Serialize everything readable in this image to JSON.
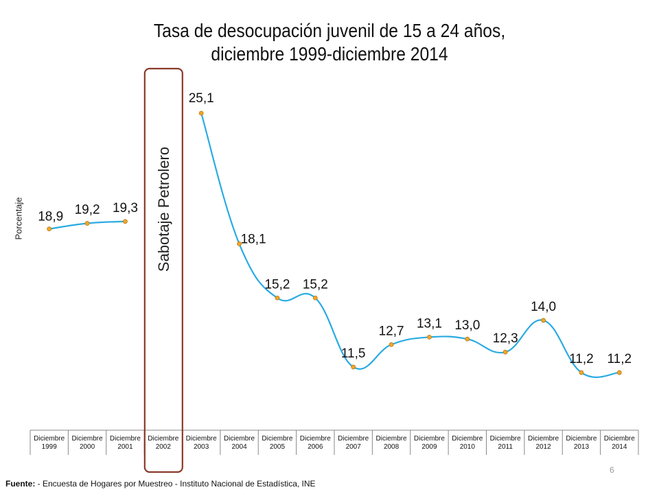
{
  "chart_data": {
    "type": "line",
    "title": [
      "Tasa de desocupación juvenil de 15 a 24 años,",
      "diciembre 1999-diciembre 2014"
    ],
    "ylabel": "Porcentaje",
    "xlabel": "",
    "categories": [
      [
        "Diciembre",
        "1999"
      ],
      [
        "Diciembre",
        "2000"
      ],
      [
        "Diciembre",
        "2001"
      ],
      [
        "Diciembre",
        "2002"
      ],
      [
        "Diciembre",
        "2003"
      ],
      [
        "Diciembre",
        "2004"
      ],
      [
        "Diciembre",
        "2005"
      ],
      [
        "Diciembre",
        "2006"
      ],
      [
        "Diciembre",
        "2007"
      ],
      [
        "Diciembre",
        "2008"
      ],
      [
        "Diciembre",
        "2009"
      ],
      [
        "Diciembre",
        "2010"
      ],
      [
        "Diciembre",
        "2011"
      ],
      [
        "Diciembre",
        "2012"
      ],
      [
        "Diciembre",
        "2013"
      ],
      [
        "Diciembre",
        "2014"
      ]
    ],
    "series": [
      {
        "values": [
          18.9,
          19.2,
          19.3,
          null,
          25.1,
          18.1,
          15.2,
          15.2,
          11.5,
          12.7,
          13.1,
          13.0,
          12.3,
          14.0,
          11.2,
          11.2
        ],
        "labels": [
          "18,9",
          "19,2",
          "19,3",
          null,
          "25,1",
          "18,1",
          "15,2",
          "15,2",
          "11,5",
          "12,7",
          "13,1",
          "13,0",
          "12,3",
          "14,0",
          "11,2",
          "11,2"
        ]
      }
    ],
    "line_color": "#29abe2",
    "marker_color": "#f5a623",
    "highlight_color": "#8b3a2a",
    "annotation": {
      "text": "Sabotaje Petrolero",
      "category_index": 3
    },
    "grid": false,
    "legend": "none"
  },
  "source": {
    "label": "Fuente:",
    "text": " - Encuesta de Hogares por Muestreo  - Instituto Nacional de Estadística, INE"
  },
  "page_number": "6"
}
